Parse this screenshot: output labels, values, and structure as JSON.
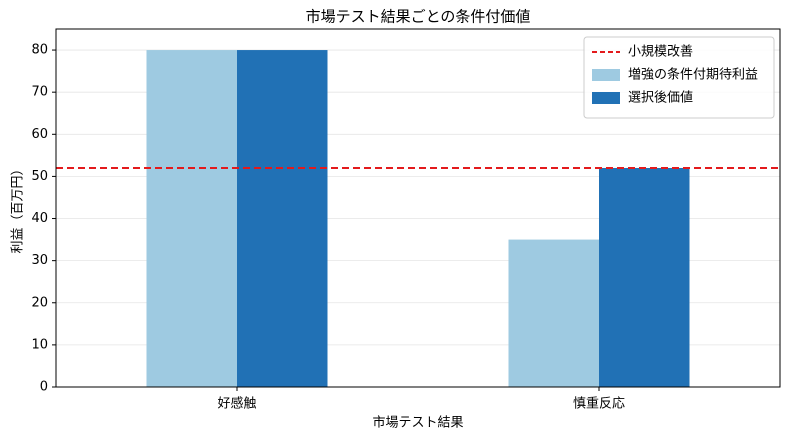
{
  "chart_data": {
    "type": "bar",
    "title": "市場テスト結果ごとの条件付価値",
    "x_label": "市場テスト結果",
    "y_label": "利益（百万円）",
    "categories": [
      "好感触",
      "慎重反応"
    ],
    "series": [
      {
        "name": "増強の条件付期待利益",
        "color": "#9ecae1",
        "values": [
          80,
          35
        ]
      },
      {
        "name": "選択後価値",
        "color": "#2171b5",
        "values": [
          80,
          52
        ]
      }
    ],
    "hline": {
      "name": "小規模改善",
      "value": 52,
      "color": "#e31a1c"
    },
    "ylim": [
      0,
      85
    ],
    "yticks": [
      0,
      10,
      20,
      30,
      40,
      50,
      60,
      70,
      80
    ],
    "grid": true,
    "legend": "upper right"
  }
}
